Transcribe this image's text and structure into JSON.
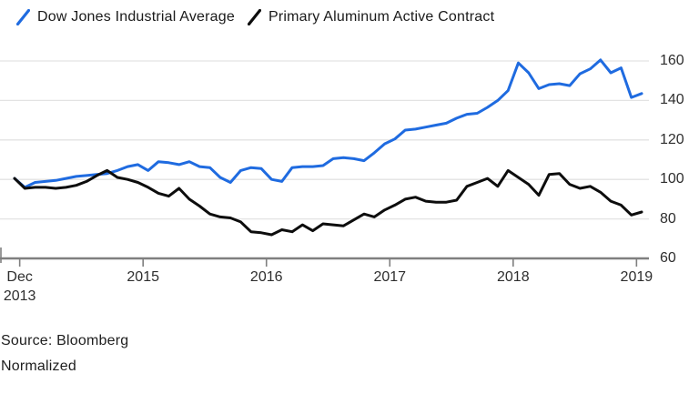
{
  "legend": {
    "items": [
      {
        "label": "Dow Jones Industrial Average",
        "color": "#1f6be0"
      },
      {
        "label": "Primary Aluminum Active Contract",
        "color": "#0d0d0d"
      }
    ]
  },
  "footer": {
    "source": "Source: Bloomberg",
    "note": "Normalized"
  },
  "chart_data": {
    "type": "line",
    "title": "",
    "xlabel": "",
    "ylabel": "",
    "normalized_base": 100,
    "grid": true,
    "y_axis_side": "right",
    "ylim": [
      60,
      165
    ],
    "y_ticks": [
      60,
      80,
      100,
      120,
      140,
      160
    ],
    "x_ticks": [
      {
        "label": "Dec",
        "sublabel": "2013"
      },
      {
        "label": "2015"
      },
      {
        "label": "2016"
      },
      {
        "label": "2017"
      },
      {
        "label": "2018"
      },
      {
        "label": "2019"
      }
    ],
    "x_months": [
      "2013-12",
      "2014-01",
      "2014-02",
      "2014-03",
      "2014-04",
      "2014-05",
      "2014-06",
      "2014-07",
      "2014-08",
      "2014-09",
      "2014-10",
      "2014-11",
      "2014-12",
      "2015-01",
      "2015-02",
      "2015-03",
      "2015-04",
      "2015-05",
      "2015-06",
      "2015-07",
      "2015-08",
      "2015-09",
      "2015-10",
      "2015-11",
      "2015-12",
      "2016-01",
      "2016-02",
      "2016-03",
      "2016-04",
      "2016-05",
      "2016-06",
      "2016-07",
      "2016-08",
      "2016-09",
      "2016-10",
      "2016-11",
      "2016-12",
      "2017-01",
      "2017-02",
      "2017-03",
      "2017-04",
      "2017-05",
      "2017-06",
      "2017-07",
      "2017-08",
      "2017-09",
      "2017-10",
      "2017-11",
      "2017-12",
      "2018-01",
      "2018-02",
      "2018-03",
      "2018-04",
      "2018-05",
      "2018-06",
      "2018-07",
      "2018-08",
      "2018-09",
      "2018-10",
      "2018-11",
      "2018-12",
      "2019-01"
    ],
    "series": [
      {
        "name": "Dow Jones Industrial Average",
        "color": "#1f6be0",
        "values": [
          100.5,
          96,
          98.5,
          99,
          99.5,
          100.5,
          101.5,
          102,
          102.5,
          103,
          104.5,
          106.5,
          107.5,
          104.5,
          109,
          108.5,
          107.5,
          109,
          106.5,
          106,
          101,
          98.5,
          104.5,
          106,
          105.5,
          100,
          99,
          106,
          106.5,
          106.5,
          107,
          110.5,
          111,
          110.5,
          109.5,
          113.5,
          118,
          120.5,
          125,
          125.5,
          126.5,
          127.5,
          128.5,
          131,
          133,
          133.5,
          136.5,
          140,
          145,
          159,
          154,
          146,
          148,
          148.5,
          147.5,
          153.5,
          156,
          160.5,
          154,
          156.5,
          141.5,
          143.5
        ]
      },
      {
        "name": "Primary Aluminum Active Contract",
        "color": "#0d0d0d",
        "values": [
          100.5,
          95.5,
          96,
          96,
          95.5,
          96,
          97,
          99,
          102,
          104.5,
          101,
          100,
          98.5,
          96,
          93,
          91.5,
          95.5,
          90,
          86.5,
          82.5,
          81,
          80.5,
          78.5,
          73.5,
          73,
          72,
          74.5,
          73.5,
          77,
          74,
          77.5,
          77,
          76.5,
          79.5,
          82.5,
          81,
          84.5,
          87,
          90,
          91,
          89,
          88.5,
          88.5,
          89.5,
          96.5,
          98.5,
          100.5,
          96.5,
          104.5,
          101,
          97.5,
          92,
          102.5,
          103,
          97.5,
          95.5,
          96.5,
          93.5,
          89,
          87,
          82,
          83.5
        ]
      }
    ],
    "colors": {
      "gridline": "#e3e3e3",
      "axis": "#7f7f7f",
      "tick": "#7f7f7f"
    }
  }
}
